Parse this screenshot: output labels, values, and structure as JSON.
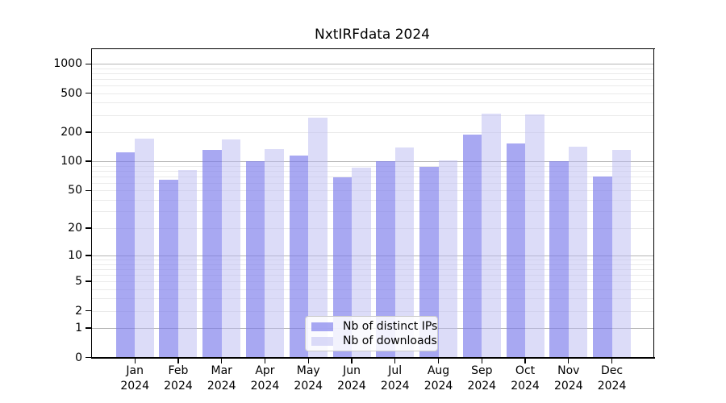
{
  "chart_data": {
    "type": "bar",
    "title": "NxtIRFdata 2024",
    "x_year": "2024",
    "categories": [
      "Jan",
      "Feb",
      "Mar",
      "Apr",
      "May",
      "Jun",
      "Jul",
      "Aug",
      "Sep",
      "Oct",
      "Nov",
      "Dec"
    ],
    "series": [
      {
        "name": "Nb of distinct IPs",
        "color": "rgba(121,121,235,0.65)",
        "values": [
          123,
          65,
          132,
          100,
          115,
          69,
          101,
          88,
          190,
          154,
          101,
          70
        ]
      },
      {
        "name": "Nb of downloads",
        "color": "rgba(185,185,241,0.5)",
        "values": [
          171,
          81,
          168,
          133,
          282,
          86,
          140,
          103,
          308,
          302,
          142,
          131
        ]
      }
    ],
    "y_ticks": [
      0,
      1,
      2,
      5,
      10,
      20,
      50,
      100,
      200,
      500,
      1000
    ],
    "y_scale": "log10(1+x)",
    "ylim": [
      0,
      1440
    ],
    "grid": {
      "major_values": [
        1,
        10,
        100,
        1000
      ],
      "minor_subs": [
        2,
        3,
        4,
        5,
        6,
        7,
        8,
        9
      ],
      "major_color": "#b5b5b5",
      "minor_color": "#eaeaea"
    },
    "legend": {
      "position": "lower center",
      "border_color": "#cbcbcb"
    },
    "colors": {
      "axis": "#000000",
      "ips_bar_on_white": "#a9a9f1",
      "downloads_bar_on_white": "#dcdcf8"
    }
  }
}
